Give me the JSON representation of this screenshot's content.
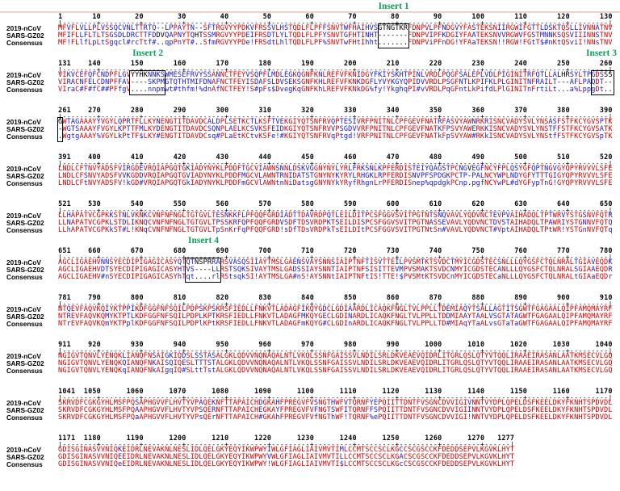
{
  "figure": {
    "kind": "multiple-sequence-alignment",
    "background": "#ffffff",
    "colors": {
      "match": "#d40000",
      "mismatch": "#1818cc",
      "neutral": "#000000",
      "ruler": "#000000",
      "row_label": "#000000",
      "insert_label": "#0d9e58",
      "box_border": "#000000",
      "top_line": "#ecd3d0"
    }
  },
  "alignment": {
    "row_labels": [
      "2019-nCoV",
      "SARS-GZ02",
      "Consensus"
    ],
    "inserts": [
      {
        "label": "Insert 1",
        "start": 76,
        "end": 82
      },
      {
        "label": "Insert 2",
        "start": 148,
        "end": 155
      },
      {
        "label": "Insert 3",
        "start": 256,
        "end": 261
      },
      {
        "label": "Insert 4",
        "start": 681,
        "end": 688
      }
    ],
    "blocks": [
      {
        "start": 1,
        "end": 130,
        "numbers": [
          1,
          10,
          20,
          30,
          40,
          50,
          60,
          70,
          80,
          90,
          100,
          110,
          120,
          130
        ]
      },
      {
        "start": 131,
        "end": 260,
        "numbers": [
          131,
          140,
          150,
          160,
          170,
          180,
          190,
          200,
          210,
          220,
          230,
          240,
          250,
          260
        ]
      },
      {
        "start": 261,
        "end": 390,
        "numbers": [
          261,
          270,
          280,
          290,
          300,
          310,
          320,
          330,
          340,
          350,
          360,
          370,
          380,
          390
        ]
      },
      {
        "start": 391,
        "end": 520,
        "numbers": [
          391,
          400,
          410,
          420,
          430,
          440,
          450,
          460,
          470,
          480,
          490,
          500,
          510,
          520
        ]
      },
      {
        "start": 521,
        "end": 650,
        "numbers": [
          521,
          530,
          540,
          550,
          560,
          570,
          580,
          590,
          600,
          610,
          620,
          630,
          640,
          650
        ]
      },
      {
        "start": 651,
        "end": 780,
        "numbers": [
          651,
          660,
          670,
          680,
          690,
          700,
          710,
          720,
          730,
          740,
          750,
          760,
          770,
          780
        ]
      },
      {
        "start": 781,
        "end": 910,
        "numbers": [
          781,
          790,
          800,
          810,
          820,
          830,
          840,
          850,
          860,
          870,
          880,
          890,
          900,
          910
        ]
      },
      {
        "start": 911,
        "end": 1040,
        "numbers": [
          911,
          920,
          930,
          940,
          950,
          960,
          970,
          980,
          990,
          1000,
          1010,
          1020,
          1030,
          1040
        ]
      },
      {
        "start": 1041,
        "end": 1170,
        "numbers": [
          1041,
          1050,
          1060,
          1070,
          1080,
          1090,
          1100,
          1110,
          1120,
          1130,
          1140,
          1150,
          1160,
          1170
        ]
      },
      {
        "start": 1171,
        "end": 1277,
        "numbers": [
          1171,
          1180,
          1190,
          1200,
          1210,
          1220,
          1230,
          1240,
          1250,
          1260,
          1270,
          1277
        ]
      }
    ],
    "ncov_blocks": [
      "MFVFLVLLPLVSSQCVNLTTRTQ--LPPAYTN--SFTRGVYYPDKVFRSSVLHSTQDLFLPFFSNVTWFHAIHVSGTNGTKRFDNPVLPFNDGVYFASTEKSNIIRGWIFGTTLDSKTQSLLIVNNATNV",
      "VIKVCEFQFCNDPFLGVYYHKNNKSWMESEFRVYSSANNCTFEYVSQPFLMDLEGKQGNFKNLREFVFKNIDGYFKIYSKHTPINLVRDLPQGFSALEPLVDLPIGINITRFQTLLALHRSYLTPGDSSS",
      "GWTAGAAAYYVGYLQPRTFLLKYNENGTITDAVDCALDPLSETKCTLKSFTVEKGIYQTSNFRVQPTESIVRFPNITNLCPFGEVFNATRFASVYAWNRKRISNCVADYSVLYNSASFSTFKCYGVSPTK",
      "LNDLCFTNVYADSFVIRGDEVRQIAPGQTGKIADYNYKLPDDFTGCVIAWNSNNLDSKVGGNYNYLYRLFRKSNLKPFERDISTEIYQAGSTPCNGVEGFNCYFPLQSYGFQPTNGVGYQPYRVVVLSFE",
      "LLHAPATVCGPKKSTNLVKNKCVNFNFNGLTGTGVLTESNKKFLPFQQFGRDIADTTDAVRDPQTLEILDITPCSFGGVSVITPGTNTSNQVAVLYQDVNCTEVPVAIHADQLTPTWRVYSTGSNVFQTR",
      "AGCLIGAEHVNNSYECDIPIGAGICASYQTQTNSPRRARSVASQSIIAYTMSLGAENSVAYSNNSIAIPTNFTISVTTEILPVSMTKTSVDCTMYICGDSTECSNLLLQYGSFCTQLNRALTGIAVEQDK",
      "NTQEVFAQVKQIYKTPPIKDFGGFNFSQILPDPSKPSKRSFIEDLLFNKVTLADAGFIKQYGDCLGDIAARDLICAQKFNGLTVLPPLLTDEMIAQYTSALLAGTITSGWTFGAGAALQIPFAMQMAYRF",
      "NGIGVTQNVLYENQKLIANQFNSAIGKIQDSLSSTASALGKLQDVVNQNAQALNTLVKQLSSNFGAISSVLNDILSRLDKVEAEVQIDRLITGRLQSLQTYVTQQLIRAAEIRASANLAATKMSECVLGQ",
      "SKRVDFCGKGYHLMSFPQSAPHGVVFLHVTYVPAQEKNFTTAPAICHDGKAHFPREGVFVSNGTHWFVTQRNFYEPQIITTDNTFVSGNCDVVIGIVNNTVYDPLQPELDSFKEELDKYFKNHTSPDVDL",
      "GDISGINASVVNIQKEIDRLNEVAKNLNESLIDLQELGKYEQYIKWPWYIWLGFIAGLIAIVMVTIMLCCMTSCCSCLKGCCSCGSCCKFDEDDSEPVLKGVKLHYT"
    ],
    "sars_blocks": [
      "MFIFLLFLTLTSGSDLDRCTTFDDVQAPNYTQHTSSMRGVYYPDEIFRSDTLYLTQDLFLPFYSNVTGFHTINHT-------FDNPVIPFKDGIYFAATEKSNVVRGWVFGSTMNNKSQSVIIINNSTNV",
      "VIRACNFELCDNPFFAV----SKPMGTQTHTMIFDNAFNCTFEYISDAFSLDVSEKSGNFKHLREFVFKNKDGFLYVYKGYQPIDVVRDLPSGFNTLKPIFKLPLGINITNFRAILT---AFLPAQDT--",
      "-WGTSAAAYFVGYLKPTTFMLKYDENGTITDAVDCSQNPLAELKCSVKSFEIDKGIYQTSNFRVVPSGDVVRFPNITNLCPFGEVFNATKFPSVYAWERKKISNCVADYSVLYNSTFFSTFKCYGVSATK",
      "LNDLCFSNVYADSFVVKGDDVRQIAPGQTGVIADYNYKLPDDFMGCVLAWNTRNIDATSTGNYNYKYRYLRHGKLRPFERDISNVPFSPDGKPCTP-PALNCYWPLNDYGFYTTTGIGYQPYRVVVLSFE",
      "LLNAPATVCGPKLSTDLIKNQCVNFNFNGLTGTGVLTPSSKRFQPFQQFGRDVSDFTDSVRDPKTSEILDISPCSFGGVSVITPGTNASSEVAVLYQDVNCTDVSTAIHADQLTPAWRIYSTGNNVFQTQ",
      "AGCLIGAEHVDTSYECDIPIGAGICASYHTVS----LLRSTSQKSIVAYTMSLGADSSIAYSNNTIAIPTNFSISITTEVMPVSMAKTSVDCNMYICGDSTECANLLLQYGSFCTQLNRALSGIAAEQDR",
      "NTREVFAQVKQMYKTPTLKDFGGFNFSQILPDPLKPTKRSFIEDLLFNKVTLADAGFMKQYGECLGDINARDLICAQKFNGLTVLPPLLTDDMIAAYTAALVSGTATAGWTFGAGAALQIPFAMQMAYRF",
      "NGIGVTQNVLYENQKQIANQFNKAISQIQESLTTTSTALGKLQDVVNQNAQALNTLVKQLSSNFGAISSVLNDILSRLDKVEAEVQIDRLITGRLQSLQTYVTQQLIRAAEIRASANLAATKMSECVLGQ",
      "SKRVDFCGKGYHLMSFPQAAPHGVVFLHVTYVPSQERNFTTAPAICHEGKAYFPREGVFVFNGTSWFITQRNFFSPQIITTDNTFVSGNCDVVIGIINNTVYDPLQPELDSFKEELDKYFKNHTSPDVDL",
      "GDISGINASVVNIQEEIDRLNEVAKNLNESLIDLQELGKYEQYIKWPWYVWLGFIAGLIAIVMVTILLCCMTSCCSCLKGACSCGSCCKFDEDDSEPVLKGVKLHYT"
    ]
  }
}
